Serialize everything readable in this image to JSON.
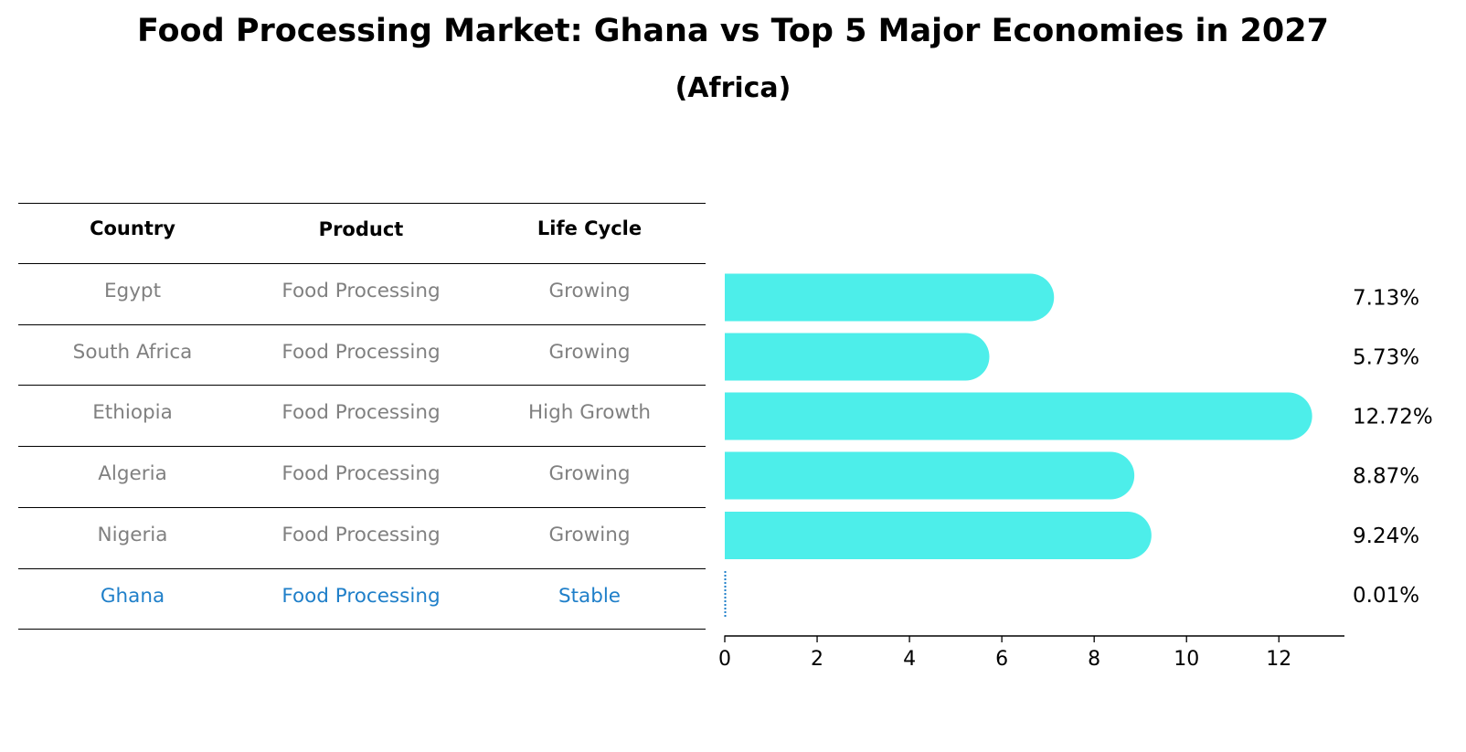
{
  "title": "Food Processing Market: Ghana vs Top 5 Major Economies in 2027",
  "subtitle": "(Africa)",
  "table": {
    "headers": [
      "Country",
      "Product",
      "Life Cycle"
    ],
    "rows": [
      {
        "country": "Egypt",
        "product": "Food Processing",
        "life_cycle": "Growing",
        "highlight": false
      },
      {
        "country": "South Africa",
        "product": "Food Processing",
        "life_cycle": "Growing",
        "highlight": false
      },
      {
        "country": "Ethiopia",
        "product": "Food Processing",
        "life_cycle": "High Growth",
        "highlight": false
      },
      {
        "country": "Algeria",
        "product": "Food Processing",
        "life_cycle": "Growing",
        "highlight": false
      },
      {
        "country": "Nigeria",
        "product": "Food Processing",
        "life_cycle": "Growing",
        "highlight": false
      },
      {
        "country": "Ghana",
        "product": "Food Processing",
        "life_cycle": "Stable",
        "highlight": true
      }
    ]
  },
  "chart_data": {
    "type": "bar",
    "orientation": "horizontal",
    "categories": [
      "Egypt",
      "South Africa",
      "Ethiopia",
      "Algeria",
      "Nigeria",
      "Ghana"
    ],
    "values": [
      7.13,
      5.73,
      12.72,
      8.87,
      9.24,
      0.01
    ],
    "value_labels": [
      "7.13%",
      "5.73%",
      "12.72%",
      "8.87%",
      "9.24%",
      "0.01%"
    ],
    "xlim": [
      0,
      13.4
    ],
    "xticks": [
      0,
      2,
      4,
      6,
      8,
      10,
      12
    ],
    "title": "Food Processing Market: Ghana vs Top 5 Major Economies in 2027",
    "subtitle": "(Africa)",
    "xlabel": "",
    "ylabel": ""
  },
  "colors": {
    "bar": "#4deeea",
    "highlight": "#1f7fc9",
    "muted_text": "#808080",
    "axis": "#000000"
  }
}
